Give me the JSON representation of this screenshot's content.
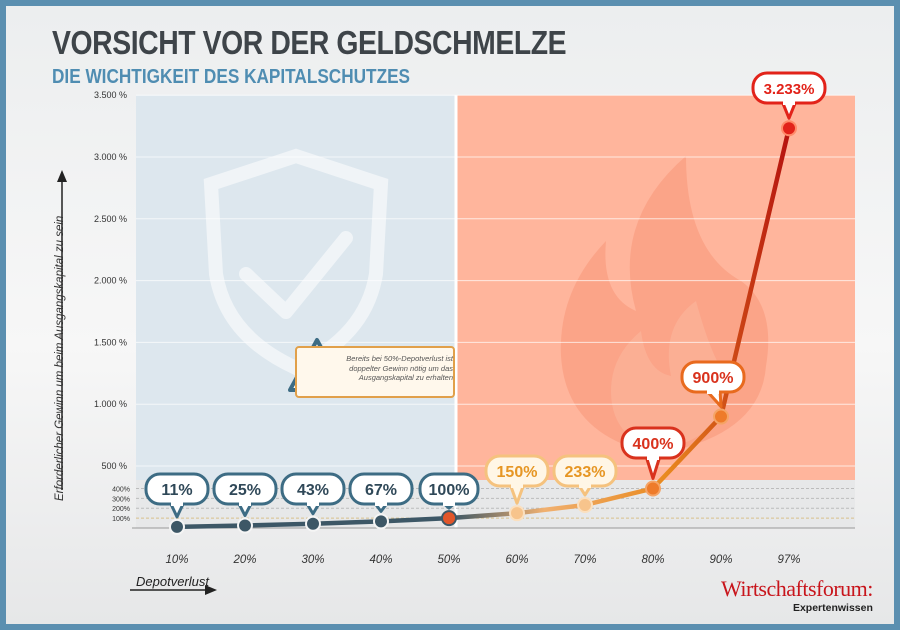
{
  "title": "VORSICHT VOR DER GELDSCHMELZE",
  "subtitle": "DIE WICHTIGKEIT DES KAPITALSCHUTZES",
  "note": "Bereits bei 50%-Depotverlust ist doppelter Gewinn nötig um das Ausgangskapital zu erhalten",
  "brand": {
    "name": "Wirtschaftsforum:",
    "sub": "Expertenwissen"
  },
  "colors": {
    "safe": "#dde7ee",
    "danger": "#ffb59c",
    "slate": "#3d5766",
    "orange": "#e9891e",
    "red": "#e2231a",
    "frame": "#5b8fb0"
  },
  "chart_data": {
    "type": "line",
    "title": "VORSICHT VOR DER GELDSCHMELZE",
    "xlabel": "Depotverlust",
    "ylabel": "Erforderlicher Gewinn um beim Ausgangskapital zu sein",
    "categories": [
      "10%",
      "20%",
      "30%",
      "40%",
      "50%",
      "60%",
      "70%",
      "80%",
      "90%",
      "97%"
    ],
    "x": [
      10,
      20,
      30,
      40,
      50,
      60,
      70,
      80,
      90,
      97
    ],
    "values": [
      11,
      25,
      43,
      67,
      100,
      150,
      233,
      400,
      900,
      3233
    ],
    "labels": [
      "11%",
      "25%",
      "43%",
      "67%",
      "100%",
      "150%",
      "233%",
      "400%",
      "900%",
      "3.233%"
    ],
    "ylim": [
      0,
      3500
    ],
    "yticks_major": [
      {
        "v": 500,
        "label": "500 %"
      },
      {
        "v": 1000,
        "label": "1.000 %"
      },
      {
        "v": 1500,
        "label": "1.500 %"
      },
      {
        "v": 2000,
        "label": "2.000 %"
      },
      {
        "v": 2500,
        "label": "2.500 %"
      },
      {
        "v": 3000,
        "label": "3.000 %"
      },
      {
        "v": 3500,
        "label": "3.500 %"
      }
    ],
    "yticks_minor": [
      {
        "v": 100,
        "label": "100%"
      },
      {
        "v": 200,
        "label": "200%"
      },
      {
        "v": 300,
        "label": "300%"
      },
      {
        "v": 400,
        "label": "400%"
      }
    ]
  }
}
